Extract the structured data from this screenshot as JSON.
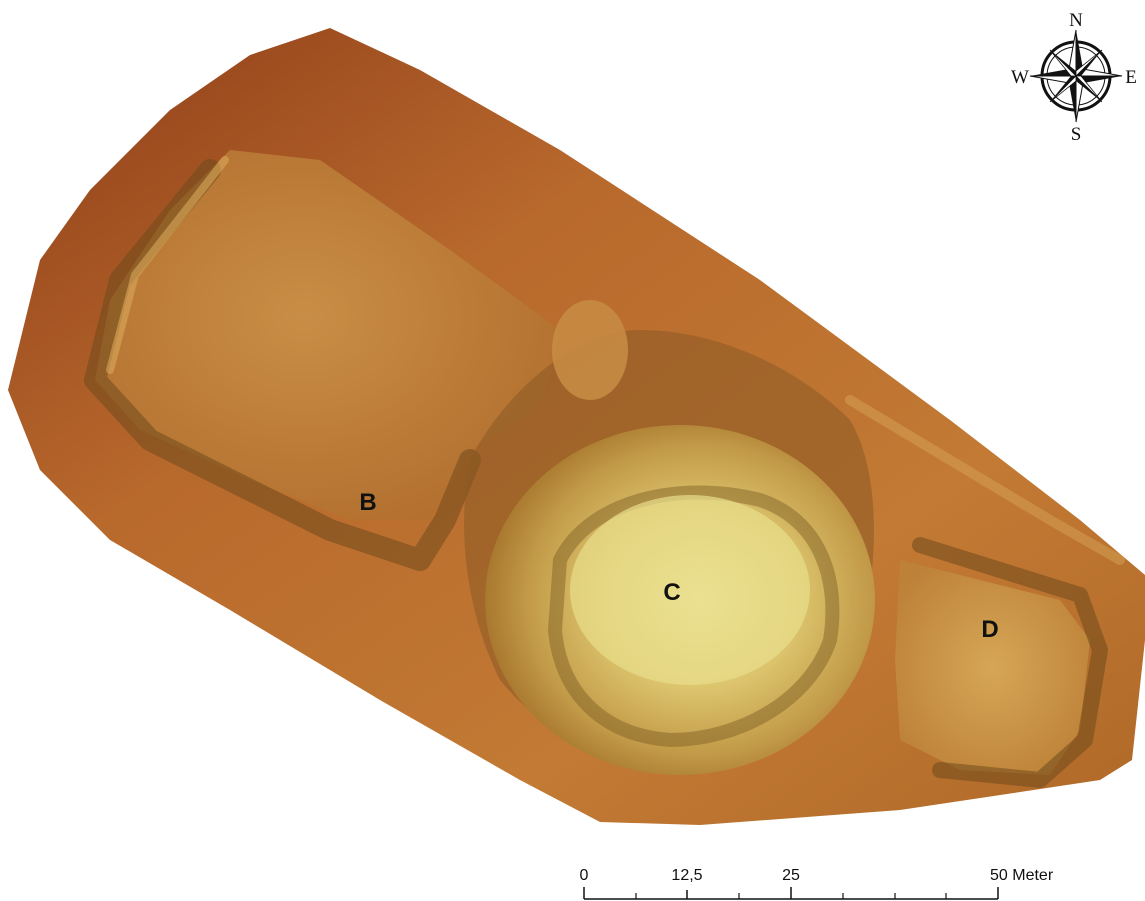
{
  "map": {
    "labels": {
      "b": "B",
      "c": "C",
      "d": "D"
    },
    "colors": {
      "terrain_edge": "#8a3a16",
      "terrain_mid": "#b8692c",
      "terrain_plateau": "#d49a45",
      "terrain_high": "#e9e08a",
      "ridge_shadow": "#6f4a1c",
      "ridge_light": "#e0b262"
    }
  },
  "compass": {
    "icon": "compass-rose-icon",
    "north": "N",
    "south": "S",
    "east": "E",
    "west": "W"
  },
  "scale_bar": {
    "tick_labels": [
      "0",
      "12,5",
      "25",
      "50 Meter"
    ]
  }
}
